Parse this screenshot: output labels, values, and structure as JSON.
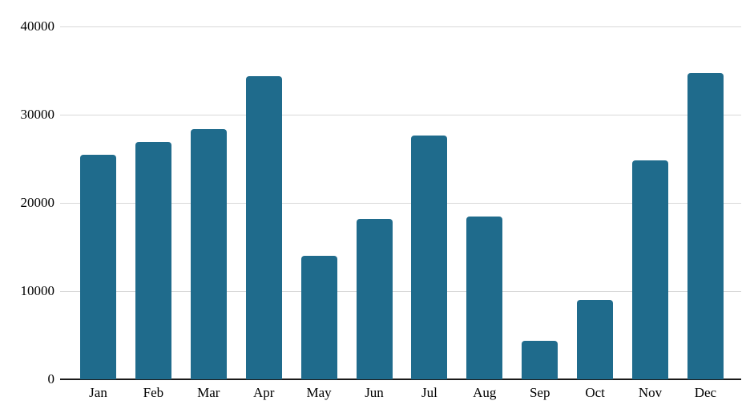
{
  "chart_data": {
    "type": "bar",
    "title": "",
    "xlabel": "",
    "ylabel": "",
    "categories": [
      "Jan",
      "Feb",
      "Mar",
      "Apr",
      "May",
      "Jun",
      "Jul",
      "Aug",
      "Sep",
      "Oct",
      "Nov",
      "Dec"
    ],
    "values": [
      25500,
      26900,
      28400,
      34400,
      14000,
      18200,
      27600,
      18500,
      4400,
      9000,
      24800,
      34700
    ],
    "ylim": [
      0,
      40000
    ],
    "yticks": [
      0,
      10000,
      20000,
      30000,
      40000
    ],
    "ytick_labels": [
      "0",
      "10000",
      "20000",
      "30000",
      "40000"
    ],
    "grid": true,
    "legend_position": "none",
    "bar_color": "#1f6b8c",
    "gridline_color": "#d9d9d9",
    "axis_line_color": "#1a1a1a",
    "tick_label_color": "#000000",
    "background_color": "#ffffff"
  }
}
